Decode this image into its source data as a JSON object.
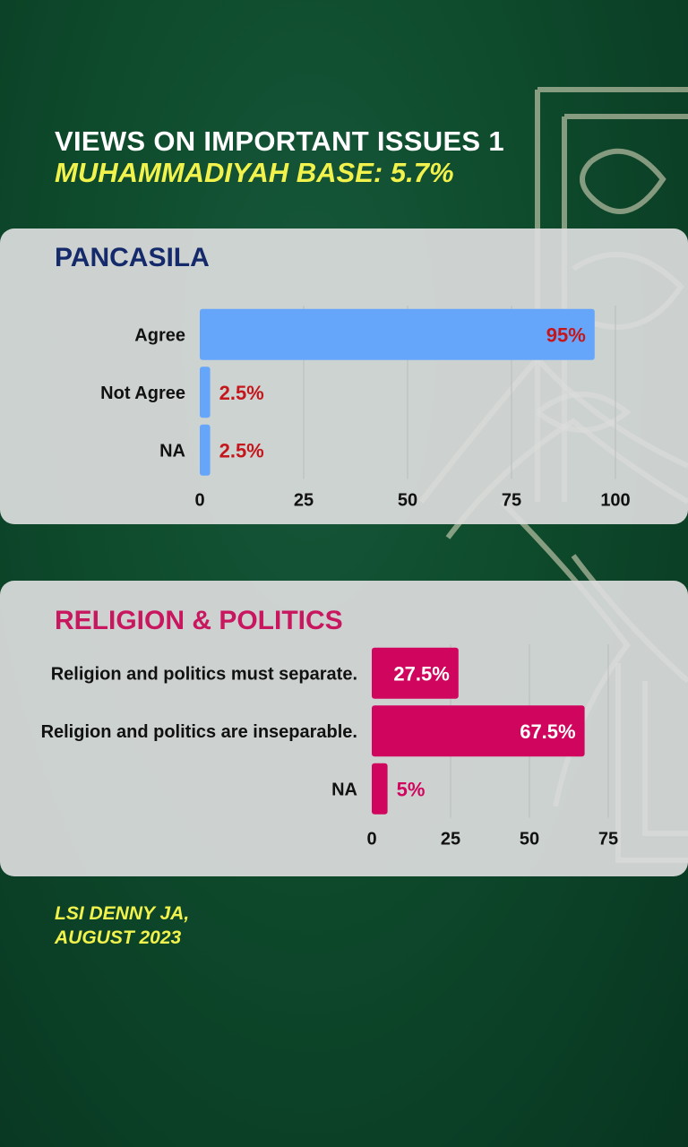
{
  "header": {
    "title": "VIEWS ON IMPORTANT ISSUES 1",
    "subtitle": "MUHAMMADIYAH BASE: 5.7%"
  },
  "colors": {
    "pancasila_bar": "#66a6fa",
    "pancasila_label": "#c4161b",
    "religion_bar": "#d0065e",
    "religion_label_outside": "#d0065e",
    "religion_label_inside": "#ffffff"
  },
  "chart_data": [
    {
      "type": "bar",
      "orientation": "horizontal",
      "title": "PANCASILA",
      "categories": [
        "Agree",
        "Not Agree",
        "NA"
      ],
      "values": [
        95,
        2.5,
        2.5
      ],
      "data_labels": [
        "95%",
        "2.5%",
        "2.5%"
      ],
      "xlim": [
        0,
        100
      ],
      "xticks": [
        0,
        25,
        50,
        75,
        100
      ],
      "grid": true
    },
    {
      "type": "bar",
      "orientation": "horizontal",
      "title": "RELIGION & POLITICS",
      "categories": [
        "Religion and politics must separate.",
        "Religion and politics are inseparable.",
        "NA"
      ],
      "values": [
        27.5,
        67.5,
        5
      ],
      "data_labels": [
        "27.5%",
        "67.5%",
        "5%"
      ],
      "xlim": [
        0,
        75
      ],
      "xticks": [
        0,
        25,
        50,
        75
      ],
      "grid": true
    }
  ],
  "footer": {
    "line1": "LSI DENNY JA,",
    "line2": "AUGUST 2023"
  }
}
